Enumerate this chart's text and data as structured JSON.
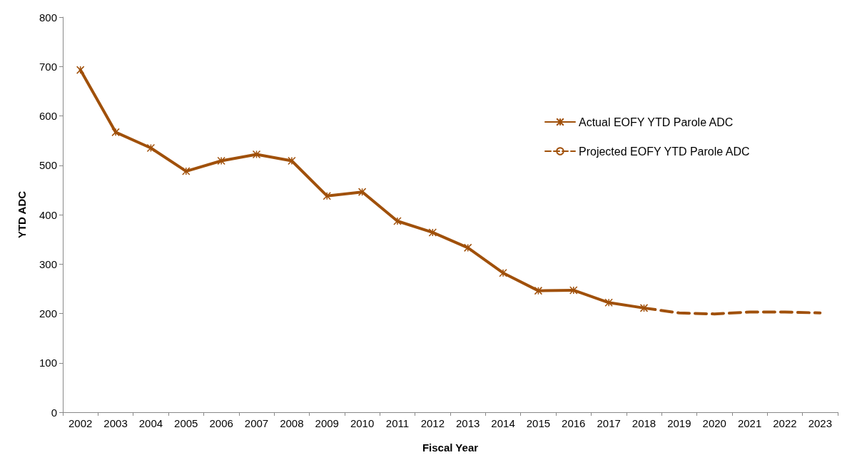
{
  "chart_data": {
    "type": "line",
    "xlabel": "Fiscal Year",
    "ylabel": "YTD ADC",
    "categories": [
      "2002",
      "2003",
      "2004",
      "2005",
      "2006",
      "2007",
      "2008",
      "2009",
      "2010",
      "2011",
      "2012",
      "2013",
      "2014",
      "2015",
      "2016",
      "2017",
      "2018",
      "2019",
      "2020",
      "2021",
      "2022",
      "2023"
    ],
    "series": [
      {
        "name": "Actual EOFY YTD Parole ADC",
        "color": "#a0500a",
        "marker": "cross",
        "line_style": "solid",
        "values": [
          693,
          567,
          535,
          488,
          509,
          522,
          509,
          438,
          446,
          387,
          364,
          333,
          282,
          246,
          247,
          222,
          211,
          null,
          null,
          null,
          null,
          null
        ]
      },
      {
        "name": "Projected EOFY YTD Parole ADC",
        "color": "#a0500a",
        "marker": "none",
        "line_style": "dashed",
        "values": [
          null,
          null,
          null,
          null,
          null,
          null,
          null,
          null,
          null,
          null,
          null,
          null,
          null,
          null,
          null,
          null,
          211,
          201,
          199,
          203,
          203,
          201
        ]
      }
    ],
    "ylim": [
      0,
      800
    ],
    "yticks": [
      0,
      100,
      200,
      300,
      400,
      500,
      600,
      700,
      800
    ],
    "grid": false,
    "legend": "right"
  }
}
